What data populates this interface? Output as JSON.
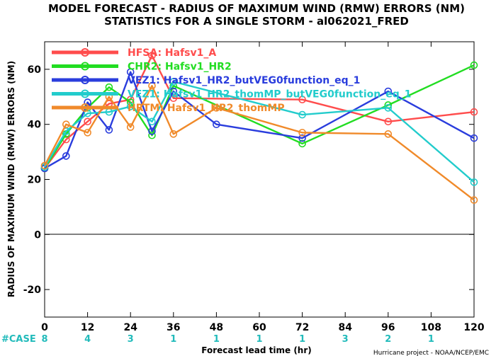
{
  "chart_data": {
    "type": "line",
    "title": "MODEL FORECAST - RADIUS OF MAXIMUM WIND (RMW) ERRORS (NM)",
    "subtitle": "STATISTICS FOR A SINGLE STORM - al062021_FRED",
    "xlabel": "Forecast lead time (hr)",
    "ylabel": "RADIUS OF MAXIMUM WIND (RMW) ERRORS (NM)",
    "xlim": [
      0,
      120
    ],
    "ylim": [
      -30,
      70
    ],
    "xticks": [
      0,
      12,
      24,
      36,
      48,
      60,
      72,
      84,
      96,
      108,
      120
    ],
    "yticks": [
      -20,
      0,
      20,
      40,
      60
    ],
    "ytick_labels": [
      "-20",
      "0",
      "20",
      "40",
      "60"
    ],
    "grid": false,
    "zero_line": true,
    "legend_position": "top-left",
    "case_label": "#CASE",
    "case_counts": [
      {
        "x": 0,
        "label": "8"
      },
      {
        "x": 12,
        "label": "4"
      },
      {
        "x": 24,
        "label": "3"
      },
      {
        "x": 36,
        "label": "1"
      },
      {
        "x": 48,
        "label": "1"
      },
      {
        "x": 60,
        "label": "1"
      },
      {
        "x": 72,
        "label": "1"
      },
      {
        "x": 84,
        "label": "3"
      },
      {
        "x": 96,
        "label": "2"
      },
      {
        "x": 108,
        "label": "1"
      }
    ],
    "footer": "Hurricane project - NOAA/NCEP/EMC",
    "series": [
      {
        "name": "HFSA: Hafsv1_A",
        "color": "#ff4c4c",
        "x": [
          0,
          6,
          12,
          18,
          24,
          30,
          36,
          72,
          96,
          120
        ],
        "y": [
          24,
          34.5,
          41,
          47.5,
          49,
          65,
          49.5,
          49,
          41,
          44.5
        ]
      },
      {
        "name": "CHR2: Hafsv1_HR2",
        "color": "#22dd22",
        "x": [
          0,
          6,
          12,
          18,
          24,
          30,
          36,
          72,
          96,
          120
        ],
        "y": [
          24,
          36.5,
          46,
          53.5,
          48,
          36,
          54,
          33,
          47,
          61.5
        ]
      },
      {
        "name": "VEZ1: Hafsv1_HR2_butVEG0function_eq_1",
        "color": "#2a3ddd",
        "x": [
          0,
          6,
          12,
          18,
          24,
          30,
          36,
          48,
          72,
          96,
          120
        ],
        "y": [
          24,
          28.5,
          48,
          38,
          59,
          37.5,
          52,
          40,
          35,
          52,
          35
        ]
      },
      {
        "name": "VEZ1: Hafsv1_HR2_thomMP_butVEG0function_eq_1",
        "color": "#22cccc",
        "x": [
          0,
          6,
          12,
          18,
          24,
          30,
          36,
          72,
          96,
          120
        ],
        "y": [
          24.5,
          37.5,
          44,
          44.5,
          46.5,
          41,
          55.5,
          43.5,
          46,
          19
        ]
      },
      {
        "name": "HRTM: Hafsv1_HR2_thomMP",
        "color": "#f08a2a",
        "x": [
          0,
          6,
          12,
          18,
          24,
          30,
          36,
          48,
          72,
          96,
          120
        ],
        "y": [
          25,
          40,
          37,
          50,
          39,
          54,
          36.5,
          46,
          37,
          36.5,
          12.5
        ]
      }
    ]
  }
}
